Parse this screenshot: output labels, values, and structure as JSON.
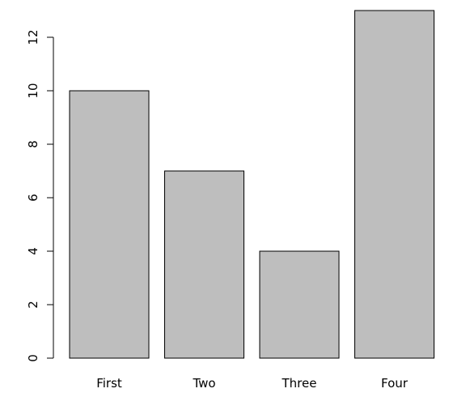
{
  "chart_data": {
    "type": "bar",
    "title": "",
    "xlabel": "",
    "ylabel": "",
    "categories": [
      "First",
      "Two",
      "Three",
      "Four"
    ],
    "values": [
      10,
      7,
      4,
      13
    ],
    "ylim": [
      0,
      13
    ],
    "yticks": [
      0,
      2,
      4,
      6,
      8,
      10,
      12
    ],
    "grid": false,
    "legend": "none",
    "bar_color": "#bebebe",
    "border_color": "#000000"
  }
}
